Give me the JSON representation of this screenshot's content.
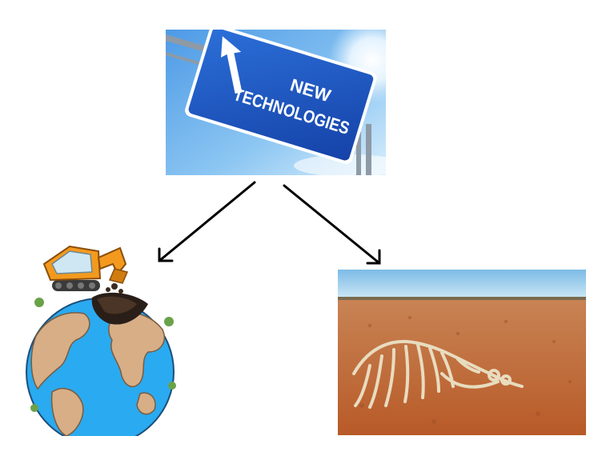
{
  "diagram": {
    "root": {
      "sign_text_line1": "NEW",
      "sign_text_line2": "TECHNOLOGIES",
      "sign_color": "#1a56c6"
    },
    "left_child": {
      "icon": "earth-with-excavator-icon",
      "ocean_color": "#2aaaf0",
      "land_color": "#d7ae86"
    },
    "right_child": {
      "icon": "desert-skeleton-icon",
      "sky_color": "#8ec6ea",
      "soil_color": "#c0652f"
    },
    "edges": [
      {
        "from": "root",
        "to": "left_child"
      },
      {
        "from": "root",
        "to": "right_child"
      }
    ]
  }
}
